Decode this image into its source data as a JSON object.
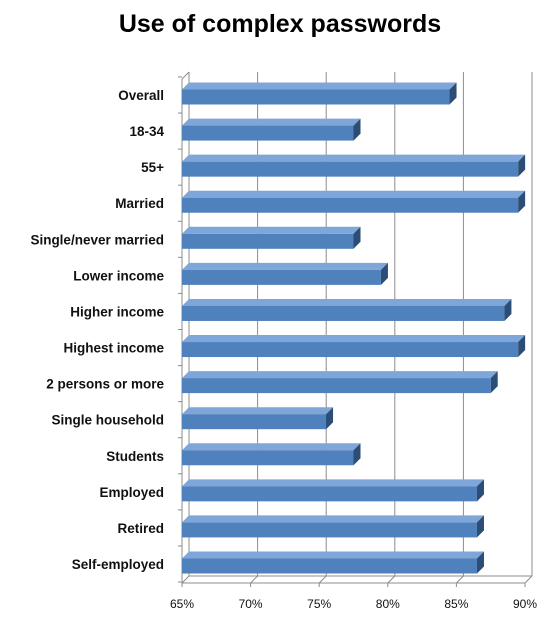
{
  "chart_data": {
    "type": "bar",
    "orientation": "horizontal",
    "title": "Use of complex passwords",
    "xlabel": "",
    "ylabel": "",
    "categories": [
      "Overall",
      "18-34",
      "55+",
      "Married",
      "Single/never married",
      "Lower income",
      "Higher income",
      "Highest income",
      "2 persons or more",
      "Single household",
      "Students",
      "Employed",
      "Retired",
      "Self-employed"
    ],
    "values": [
      84.5,
      77.5,
      89.5,
      89.5,
      77.5,
      79.5,
      88.5,
      89.5,
      87.5,
      75.5,
      77.5,
      86.5,
      86.5,
      86.5
    ],
    "xlim": [
      65,
      90
    ],
    "xticks": [
      65,
      70,
      75,
      80,
      85,
      90
    ],
    "xtick_labels": [
      "65%",
      "70%",
      "75%",
      "80%",
      "85%",
      "90%"
    ],
    "grid": true,
    "bar_color": "#4f81bd",
    "bar_dark_color": "#2c4d75",
    "bar_light_color": "#7ea6d8"
  }
}
